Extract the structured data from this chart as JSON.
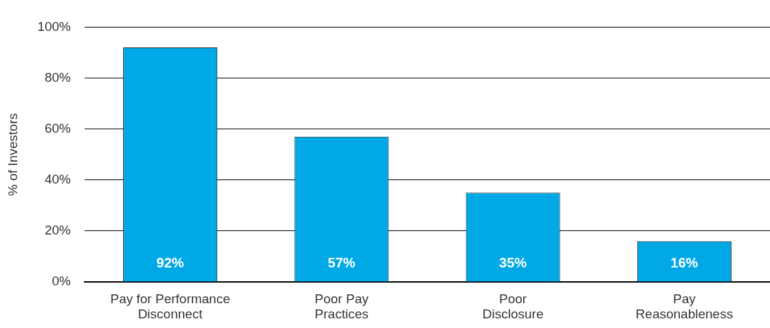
{
  "chart_data": {
    "type": "bar",
    "ylabel": "% of Investors",
    "categories": [
      "Pay for Performance\nDisconnect",
      "Poor Pay\nPractices",
      "Poor\nDisclosure",
      "Pay\nReasonableness"
    ],
    "values": [
      92,
      57,
      35,
      16
    ],
    "color": "#00a9e6",
    "value_labels": [
      "92%",
      "57%",
      "35%",
      "16%"
    ],
    "ylim": [
      0,
      100
    ],
    "yticks": [
      {
        "value": 0,
        "label": "0%"
      },
      {
        "value": 20,
        "label": "20%"
      },
      {
        "value": 40,
        "label": "40%"
      },
      {
        "value": 60,
        "label": "60%"
      },
      {
        "value": 80,
        "label": "80%"
      },
      {
        "value": 100,
        "label": "100%"
      }
    ],
    "grid": "y",
    "legend": false
  }
}
